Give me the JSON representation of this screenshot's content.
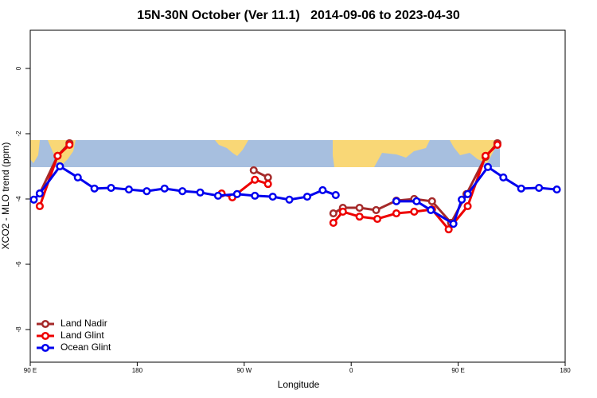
{
  "chart_data": {
    "type": "line",
    "title": "15N-30N October (Ver 11.1)   2014-09-06 to 2023-04-30",
    "xlabel": "Longitude",
    "ylabel": "XCO2 - MLO trend (ppm)",
    "xlim": [
      90,
      540
    ],
    "xticks": [
      {
        "value": 90,
        "label": "90 E"
      },
      {
        "value": 180,
        "label": "180"
      },
      {
        "value": 270,
        "label": "90 W"
      },
      {
        "value": 360,
        "label": "0"
      },
      {
        "value": 450,
        "label": "90 E"
      },
      {
        "value": 540,
        "label": "180"
      }
    ],
    "ylim": [
      -9,
      1.17
    ],
    "yticks": [
      0,
      -2,
      -4,
      -6,
      -8
    ],
    "legend": "bottom-left",
    "series": [
      {
        "name": "Land Nadir",
        "color": "#a52a2a",
        "x": [
          98,
          113,
          123,
          null,
          278,
          290,
          null,
          345,
          353,
          367,
          381,
          398,
          413,
          428,
          444,
          457,
          473,
          483
        ],
        "values": [
          -3.83,
          -2.68,
          -2.29,
          null,
          -3.12,
          -3.34,
          null,
          -4.44,
          -4.27,
          -4.27,
          -4.34,
          -4.05,
          -4.0,
          -4.07,
          -4.73,
          -3.85,
          -2.71,
          -2.29
        ]
      },
      {
        "name": "Land Glint",
        "color": "#ee0000",
        "x": [
          98,
          113,
          123,
          null,
          251,
          260,
          279,
          290,
          null,
          345,
          353,
          367,
          382,
          398,
          413,
          428,
          442,
          458,
          473,
          483
        ],
        "values": [
          -4.22,
          -2.68,
          -2.34,
          null,
          -3.83,
          -3.95,
          -3.41,
          -3.54,
          null,
          -4.73,
          -4.39,
          -4.54,
          -4.61,
          -4.44,
          -4.39,
          -4.32,
          -4.93,
          -4.22,
          -2.68,
          -2.34
        ]
      },
      {
        "name": "Ocean Glint",
        "color": "#0000ee",
        "x": [
          93,
          98,
          115,
          130,
          144,
          158,
          173,
          188,
          203,
          218,
          233,
          248,
          264,
          279,
          294,
          308,
          323,
          336,
          347,
          null,
          398,
          415,
          427,
          446,
          453,
          458,
          475,
          488,
          503,
          518,
          533
        ],
        "values": [
          -4.02,
          -3.83,
          -3.0,
          -3.34,
          -3.68,
          -3.66,
          -3.71,
          -3.76,
          -3.68,
          -3.76,
          -3.8,
          -3.9,
          -3.85,
          -3.9,
          -3.93,
          -4.02,
          -3.93,
          -3.73,
          -3.88,
          null,
          -4.07,
          -4.07,
          -4.34,
          -4.76,
          -4.02,
          -3.85,
          -3.02,
          -3.34,
          -3.68,
          -3.66,
          -3.71
        ]
      }
    ]
  }
}
